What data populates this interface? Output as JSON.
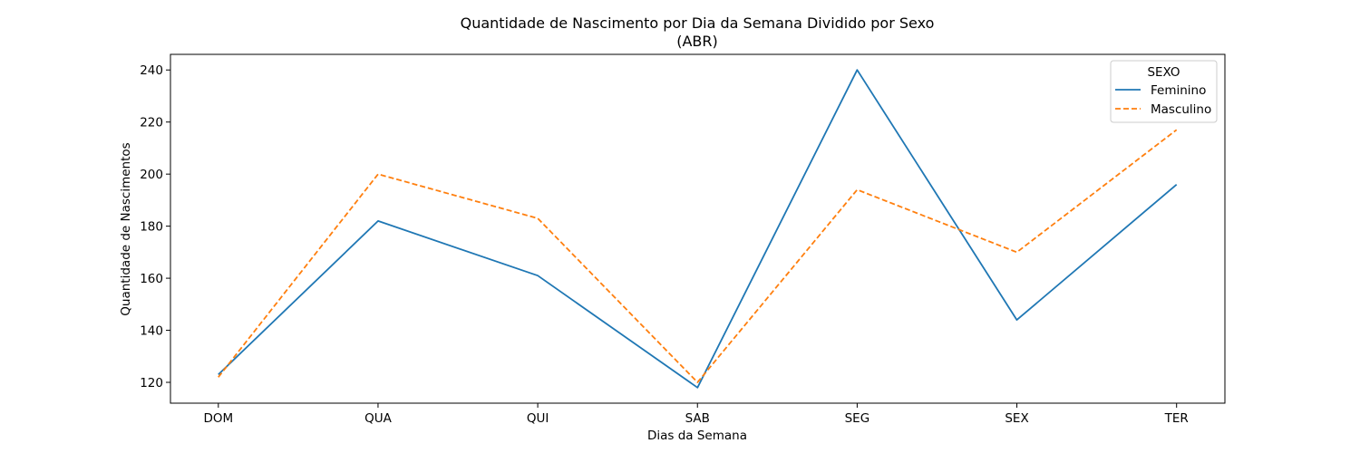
{
  "chart_data": {
    "type": "line",
    "title": "Quantidade de Nascimento por Dia da Semana Dividido por Sexo",
    "subtitle": "(ABR)",
    "xlabel": "Dias da Semana",
    "ylabel": "Quantidade de Nascimentos",
    "categories": [
      "DOM",
      "QUA",
      "QUI",
      "SAB",
      "SEG",
      "SEX",
      "TER"
    ],
    "ylim": [
      112,
      246
    ],
    "yticks": [
      120,
      140,
      160,
      180,
      200,
      220,
      240
    ],
    "grid": false,
    "legend": {
      "title": "SEXO",
      "placement": "top-right"
    },
    "series": [
      {
        "name": "Feminino",
        "values": [
          123,
          182,
          161,
          118,
          240,
          144,
          196
        ],
        "color": "#1f77b4",
        "style": "solid"
      },
      {
        "name": "Masculino",
        "values": [
          122,
          200,
          183,
          120,
          194,
          170,
          217
        ],
        "color": "#ff7f0e",
        "style": "dashed"
      }
    ]
  }
}
